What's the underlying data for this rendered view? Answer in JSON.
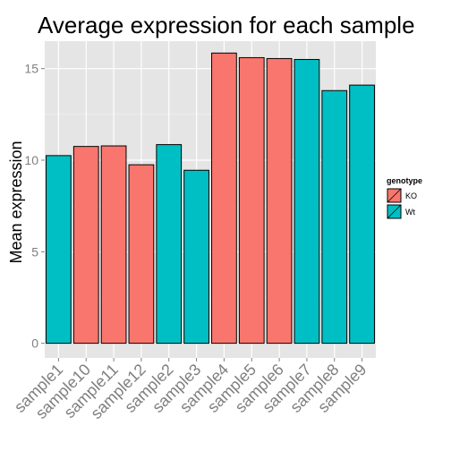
{
  "chart_data": {
    "type": "bar",
    "title": "Average expression for each sample",
    "xlabel": "",
    "ylabel": "Mean expression",
    "ylim": [
      -0.8,
      16.5
    ],
    "yticks": [
      0,
      5,
      10,
      15
    ],
    "grid": true,
    "legend": {
      "title": "genotype",
      "placement": "right",
      "entries": [
        {
          "label": "KO",
          "color": "#F8766D"
        },
        {
          "label": "Wt",
          "color": "#00BFC4"
        }
      ]
    },
    "categories": [
      "sample1",
      "sample10",
      "sample11",
      "sample12",
      "sample2",
      "sample3",
      "sample4",
      "sample5",
      "sample6",
      "sample7",
      "sample8",
      "sample9"
    ],
    "values": [
      10.25,
      10.75,
      10.78,
      9.75,
      10.85,
      9.45,
      15.85,
      15.6,
      15.55,
      15.5,
      13.8,
      14.1
    ],
    "groups": [
      "Wt",
      "KO",
      "KO",
      "KO",
      "Wt",
      "Wt",
      "KO",
      "KO",
      "KO",
      "Wt",
      "Wt",
      "Wt"
    ]
  }
}
